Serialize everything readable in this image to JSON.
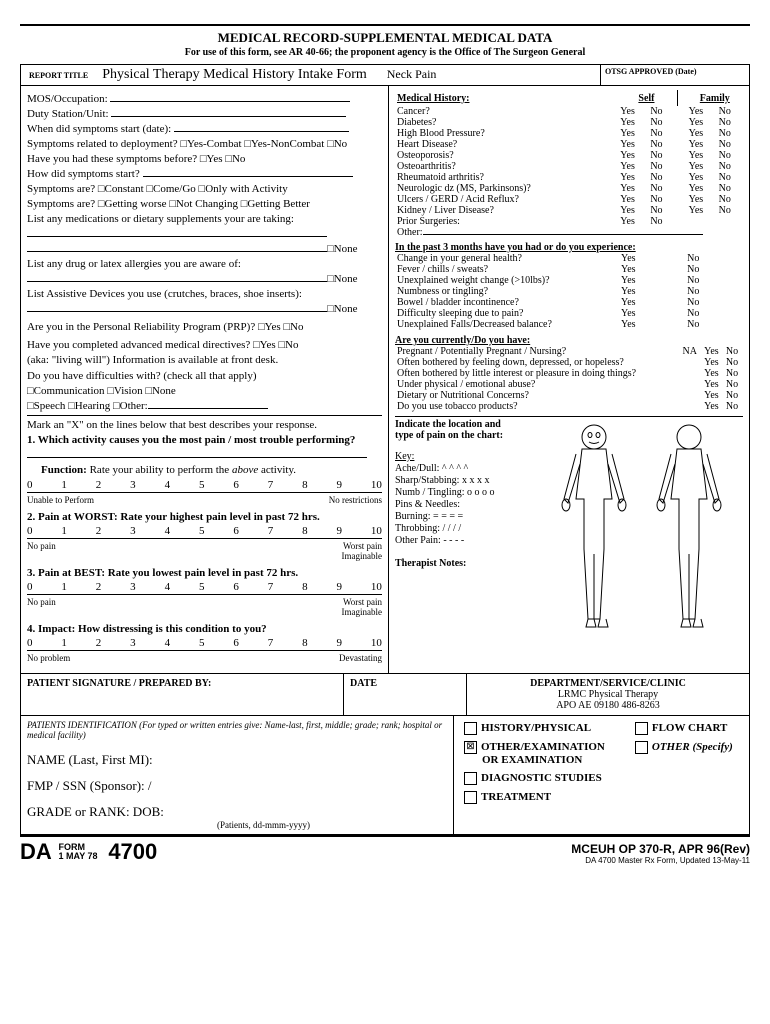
{
  "header": {
    "title": "MEDICAL RECORD-SUPPLEMENTAL MEDICAL DATA",
    "subtitle": "For use of this form, see AR 40-66; the proponent agency is the Office of The Surgeon General"
  },
  "titleRow": {
    "label": "REPORT TITLE",
    "main": "Physical Therapy Medical History Intake Form",
    "condition": "Neck Pain",
    "approved": "OTSG APPROVED (Date)"
  },
  "left": {
    "l1": "MOS/Occupation:",
    "l2": "Duty Station/Unit:",
    "l3": "When did symptoms start (date):",
    "l4": "Symptoms related to deployment?  □Yes-Combat  □Yes-NonCombat  □No",
    "l5": "Have you had these symptoms before?  □Yes      □No",
    "l6": "How did symptoms start?",
    "l7": "Symptoms are?   □Constant         □Come/Go         □Only with Activity",
    "l8": "Symptoms are?   □Getting worse   □Not Changing    □Getting Better",
    "l9": "List any medications or dietary supplements your are taking:",
    "none": "□None",
    "l10": "List any drug or latex allergies you are aware of:",
    "l11": "List Assistive Devices you use (crutches, braces, shoe inserts):",
    "l12": "Are you in the Personal Reliability Program (PRP)?          □Yes      □No",
    "l13a": "Have you completed advanced medical directives?           □Yes      □No",
    "l13b": "(aka: \"living will\")  Information is available at front desk.",
    "l14": "Do you have difficulties with? (check all that apply)",
    "l15": "□Communication   □Vision           □None",
    "l16": "□Speech             □Hearing         □Other:",
    "mark": "Mark an \"X\" on the lines below that best describes your response.",
    "q1": "1. Which activity causes you the most pain / most trouble performing?",
    "func": "Function: ",
    "funcRest": "Rate your ability to perform the above activity.",
    "scale": [
      "0",
      "1",
      "2",
      "3",
      "4",
      "5",
      "6",
      "7",
      "8",
      "9",
      "10"
    ],
    "s1a": "Unable to Perform",
    "s1b": "No restrictions",
    "q2": "2. Pain at WORST: Rate your highest pain level in past 72 hrs.",
    "s2a": "No pain",
    "s2b": "Worst pain",
    "s2c": "Imaginable",
    "q3": "3. Pain at BEST:  Rate you lowest pain level in past 72 hrs.",
    "q4": "4. Impact: How distressing is this condition to you?",
    "s4a": "No problem",
    "s4b": "Devastating"
  },
  "right": {
    "mh": "Medical History:",
    "self": "Self",
    "family": "Family",
    "conditions": [
      "Cancer?",
      "Diabetes?",
      "High Blood Pressure?",
      "Heart Disease?",
      "Osteoporosis?",
      "Osteoarthritis?",
      "Rheumatoid arthritis?",
      "Neurologic dz (MS, Parkinsons)?",
      "Ulcers / GERD / Acid Reflux?",
      "Kidney / Liver Disease?"
    ],
    "prior": "Prior Surgeries:",
    "other": "Other:",
    "yes": "Yes",
    "no": "No",
    "past3": "In the past 3 months have you had or do you experience:",
    "past3items": [
      "Change in your general health?",
      "Fever / chills / sweats?",
      "Unexplained weight change (>10lbs)?",
      "Numbness or tingling?",
      "Bowel / bladder incontinence?",
      "Difficulty sleeping due to pain?",
      "Unexplained Falls/Decreased balance?"
    ],
    "current": "Are you currently/Do you have:",
    "curItems": [
      {
        "t": "Pregnant / Potentially Pregnant / Nursing?",
        "na": true
      },
      {
        "t": "Often bothered by feeling down, depressed, or hopeless?",
        "na": false
      },
      {
        "t": "Often bothered by little interest or pleasure in doing things?",
        "na": false
      },
      {
        "t": "Under physical / emotional abuse?",
        "na": false
      },
      {
        "t": "Dietary or Nutritional Concerns?",
        "na": false
      },
      {
        "t": "Do you use tobacco products?",
        "na": false
      }
    ],
    "na": "NA",
    "indicate1": "Indicate the location and",
    "indicate2": "type of pain on the chart:",
    "key": "Key:",
    "k1": "Ache/Dull:  ^ ^ ^ ^",
    "k2": "Sharp/Stabbing: x x x x",
    "k3": "Numb / Tingling:  o o o o",
    "k4": "Pins & Needles:",
    "k5": "Burning:   = = = =",
    "k6": "Throbbing:  / / / /",
    "k7": "Other Pain:  - - - -",
    "notes": "Therapist Notes:"
  },
  "sig": {
    "a": "PATIENT SIGNATURE / PREPARED BY:",
    "b": "DATE",
    "c": "DEPARTMENT/SERVICE/CLINIC",
    "d": "LRMC Physical Therapy",
    "e": "APO AE 09180   486-8263"
  },
  "bottom": {
    "id": "PATIENTS IDENTIFICATION (For typed or written entries give: Name-last, first, middle; grade; rank; hospital or medical facility)",
    "name": "NAME (Last, First MI):",
    "fmp": "FMP / SSN (Sponsor):        /",
    "grade": "GRADE or RANK:            DOB:",
    "dob": "(Patients, dd-mmm-yyyy)",
    "opts": [
      "HISTORY/PHYSICAL",
      "OTHER/EXAMINATION",
      "OR EXAMINATION",
      "DIAGNOSTIC STUDIES",
      "TREATMENT",
      "FLOW CHART",
      "OTHER (Specify)"
    ]
  },
  "footer": {
    "da": "DA",
    "form": "FORM",
    "date": "1 MAY 78",
    "num": "4700",
    "r1": "MCEUH OP 370-R, APR 96(Rev)",
    "r2": "DA 4700 Master Rx Form, Updated 13-May-11"
  }
}
